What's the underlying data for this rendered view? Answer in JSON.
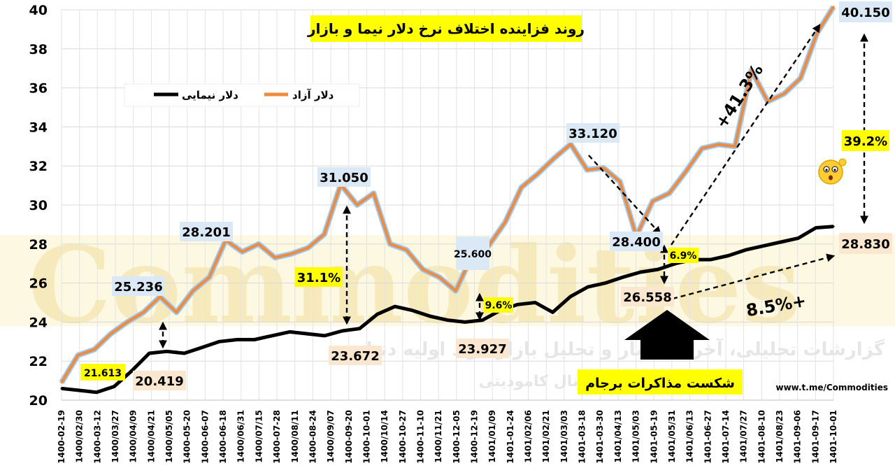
{
  "chart_data": {
    "type": "line",
    "title": "روند فزاینده اختلاف نرخ دلار نیما و بازار",
    "ylim": [
      20,
      40
    ],
    "yticks": [
      20,
      22,
      24,
      26,
      28,
      30,
      32,
      34,
      36,
      38,
      40
    ],
    "xticks": [
      "1400-02-19",
      "1400/02/30",
      "1400-03-12",
      "1400/03/27",
      "1400/04/09",
      "1400/04/21",
      "1400/05/05",
      "1400-05-20",
      "1400-06-07",
      "1400-06-18",
      "1400/06/31",
      "1400/07/15",
      "1400-07-28",
      "1400/08/11",
      "1400-08-24",
      "1400/09/07",
      "1400-09-20",
      "1400-10-01",
      "1400/10/14",
      "1400-10-27",
      "1400-11-10",
      "1400/11/21",
      "1400-12-05",
      "1400-12-19",
      "1401/01/09",
      "1401-01-24",
      "1401/02/06",
      "1401/02/21",
      "1401/03/03",
      "1401-03-18",
      "1401-03-30",
      "1401/04/13",
      "1401/05/03",
      "1401-05-19",
      "1401/05/31",
      "1401/06/13",
      "1401-06-27",
      "1401-07-14",
      "1401/07/27",
      "1401-08-10",
      "1401/08/23",
      "1401-09-06",
      "1401-09-17",
      "1401-10-01"
    ],
    "grid": true,
    "legend_position": "top-left",
    "series": [
      {
        "name": "دلار آزاد",
        "color": "#f08a3c",
        "values": [
          20.9,
          22.3,
          22.6,
          23.4,
          24.0,
          24.5,
          25.3,
          24.5,
          25.6,
          26.3,
          28.2,
          27.6,
          28.0,
          27.3,
          27.5,
          27.8,
          28.5,
          31.05,
          30.0,
          30.6,
          28.0,
          27.7,
          26.7,
          26.3,
          25.6,
          27.4,
          27.9,
          29.1,
          30.9,
          31.6,
          32.4,
          33.12,
          31.8,
          31.9,
          31.2,
          28.4,
          30.2,
          30.6,
          31.7,
          32.9,
          33.1,
          33.0,
          36.9,
          35.3,
          35.7,
          36.5,
          38.8,
          40.15
        ]
      },
      {
        "name": "دلار نیمایی",
        "color": "#000000",
        "values": [
          20.6,
          20.5,
          20.4,
          20.7,
          21.5,
          22.4,
          22.5,
          22.4,
          22.7,
          23.0,
          23.1,
          23.1,
          23.3,
          23.5,
          23.4,
          23.3,
          23.55,
          23.672,
          24.4,
          24.8,
          24.6,
          24.3,
          24.1,
          24.0,
          24.1,
          24.6,
          24.9,
          25.0,
          24.5,
          25.3,
          25.8,
          26.0,
          26.3,
          26.558,
          26.7,
          27.0,
          27.2,
          27.2,
          27.4,
          27.7,
          27.9,
          28.1,
          28.3,
          28.83,
          28.9
        ]
      }
    ],
    "annotations": {
      "levels": [
        "21.613",
        "20.419",
        "25.236",
        "28.201",
        "31.050",
        "23.672",
        "25.600",
        "23.927",
        "33.120",
        "28.400",
        "26.558",
        "40.150",
        "28.830"
      ],
      "spreads": [
        "31.1%",
        "9.6%",
        "6.9%",
        "39.2%"
      ],
      "changes": [
        "+41.3%",
        "8.5%+"
      ],
      "event": "شکست مذاکرات برجام"
    },
    "source": "www.t.me/Commodities"
  },
  "watermark": {
    "brand": "Commodities",
    "tagline": "گزارشات تحلیلی، آخرین اخبار و تحلیل بازار مواد اولیه دنیا",
    "sub": "در کانال کامودیتی"
  }
}
